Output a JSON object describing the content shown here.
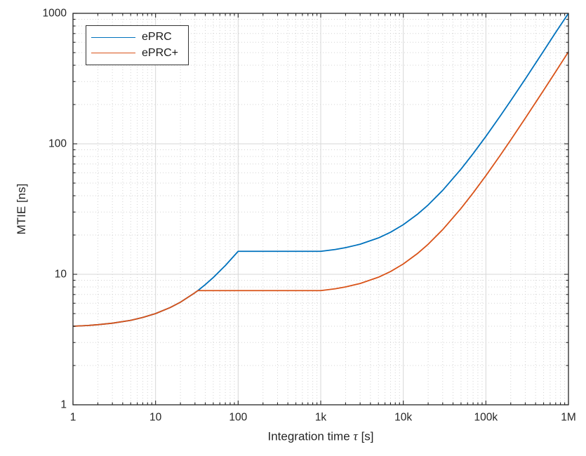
{
  "figure": {
    "background": "#ffffff",
    "axis_color": "#262626",
    "grid_major_color": "#d7d7d7",
    "grid_minor_color": "#c9c9c9",
    "tick_label_color": "#262626"
  },
  "chart_data": {
    "type": "line",
    "title": "",
    "xlabel_prefix": "Integration time ",
    "xlabel_tau": "τ",
    "xlabel_suffix": " [s]",
    "ylabel": "MTIE [ns]",
    "x_scale": "log",
    "y_scale": "log",
    "xlim": [
      1,
      1000000
    ],
    "ylim": [
      1,
      1000
    ],
    "grid": "major solid, minor dotted",
    "legend_position": "top-left",
    "x_ticks": [
      {
        "value": 1,
        "label": "1"
      },
      {
        "value": 10,
        "label": "10"
      },
      {
        "value": 100,
        "label": "100"
      },
      {
        "value": 1000,
        "label": "1k"
      },
      {
        "value": 10000,
        "label": "10k"
      },
      {
        "value": 100000,
        "label": "100k"
      },
      {
        "value": 1000000,
        "label": "1M"
      }
    ],
    "y_ticks": [
      {
        "value": 1,
        "label": "1"
      },
      {
        "value": 10,
        "label": "10"
      },
      {
        "value": 100,
        "label": "100"
      },
      {
        "value": 1000,
        "label": "1000"
      }
    ],
    "series": [
      {
        "name": "ePRC",
        "color": "#0072BD",
        "x": [
          1,
          1.5,
          2,
          3,
          5,
          7,
          10,
          15,
          20,
          30,
          32.5,
          40,
          50,
          70,
          100,
          150,
          200,
          300,
          500,
          700,
          1000,
          1500,
          2000,
          3000,
          5000,
          7000,
          10000,
          15000,
          20000,
          30000,
          50000,
          70000,
          100000,
          150000,
          200000,
          300000,
          500000,
          700000,
          1000000
        ],
        "y": [
          4.0,
          4.05,
          4.11,
          4.22,
          4.44,
          4.67,
          5.0,
          5.56,
          6.11,
          7.23,
          7.5,
          8.34,
          9.45,
          11.68,
          15,
          15,
          15,
          15,
          15,
          15,
          15,
          15.5,
          16,
          17,
          19,
          21,
          24,
          29,
          34,
          44,
          64,
          84,
          114,
          164,
          214,
          314,
          514,
          714,
          1000
        ]
      },
      {
        "name": "ePRC+",
        "color": "#D95319",
        "x": [
          1,
          1.5,
          2,
          3,
          5,
          7,
          10,
          15,
          20,
          30,
          32.5,
          40,
          50,
          70,
          100,
          150,
          200,
          300,
          500,
          700,
          1000,
          1500,
          2000,
          3000,
          5000,
          7000,
          10000,
          15000,
          20000,
          30000,
          50000,
          70000,
          100000,
          150000,
          200000,
          300000,
          500000,
          700000,
          1000000
        ],
        "y": [
          4.0,
          4.05,
          4.11,
          4.22,
          4.44,
          4.67,
          5.0,
          5.56,
          6.11,
          7.23,
          7.5,
          7.5,
          7.5,
          7.5,
          7.5,
          7.5,
          7.5,
          7.5,
          7.5,
          7.5,
          7.5,
          7.75,
          8,
          8.5,
          9.5,
          10.5,
          12,
          14.5,
          17,
          22,
          32,
          42,
          57,
          82,
          107,
          157,
          257,
          357,
          507
        ]
      }
    ]
  }
}
